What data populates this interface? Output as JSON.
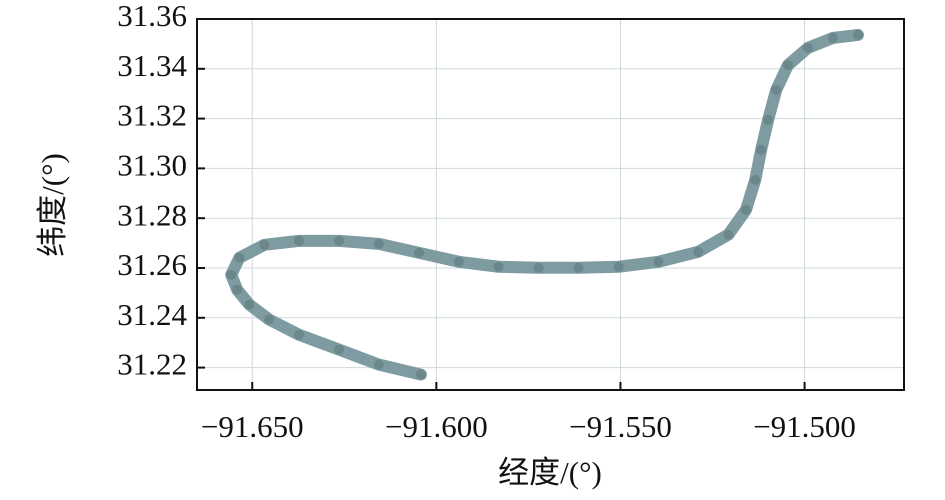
{
  "chart_data": {
    "type": "scatter",
    "xlabel": "经度/(°)",
    "ylabel": "纬度/(°)",
    "xlim": [
      -91.665,
      -91.473
    ],
    "ylim": [
      31.211,
      31.36
    ],
    "xticks": [
      {
        "value": -91.65,
        "label": "−91.650"
      },
      {
        "value": -91.6,
        "label": "−91.600"
      },
      {
        "value": -91.55,
        "label": "−91.550"
      },
      {
        "value": -91.5,
        "label": "−91.500"
      }
    ],
    "yticks": [
      31.22,
      31.24,
      31.26,
      31.28,
      {
        "value": 31.3,
        "label": "31.30"
      },
      31.32,
      31.34,
      31.36
    ],
    "grid": true,
    "color": "#7d9ba1",
    "x": [
      -91.6042,
      -91.6156,
      -91.6264,
      -91.6373,
      -91.6454,
      -91.6508,
      -91.6541,
      -91.6557,
      -91.6535,
      -91.6467,
      -91.6373,
      -91.6264,
      -91.6156,
      -91.6047,
      -91.5939,
      -91.5831,
      -91.5722,
      -91.5614,
      -91.5505,
      -91.5397,
      -91.5289,
      -91.5207,
      -91.5159,
      -91.5134,
      -91.5118,
      -91.5099,
      -91.5077,
      -91.5045,
      -91.4991,
      -91.4923,
      -91.4855
    ],
    "y": [
      31.2172,
      31.2212,
      31.2272,
      31.2332,
      31.2393,
      31.2453,
      31.2513,
      31.2573,
      31.2641,
      31.2693,
      31.2709,
      31.2709,
      31.2697,
      31.2661,
      31.2625,
      31.2605,
      31.2601,
      31.2601,
      31.2605,
      31.2625,
      31.2665,
      31.2734,
      31.2834,
      31.2954,
      31.3074,
      31.3195,
      31.3315,
      31.3415,
      31.3484,
      31.3524,
      31.3536
    ]
  }
}
